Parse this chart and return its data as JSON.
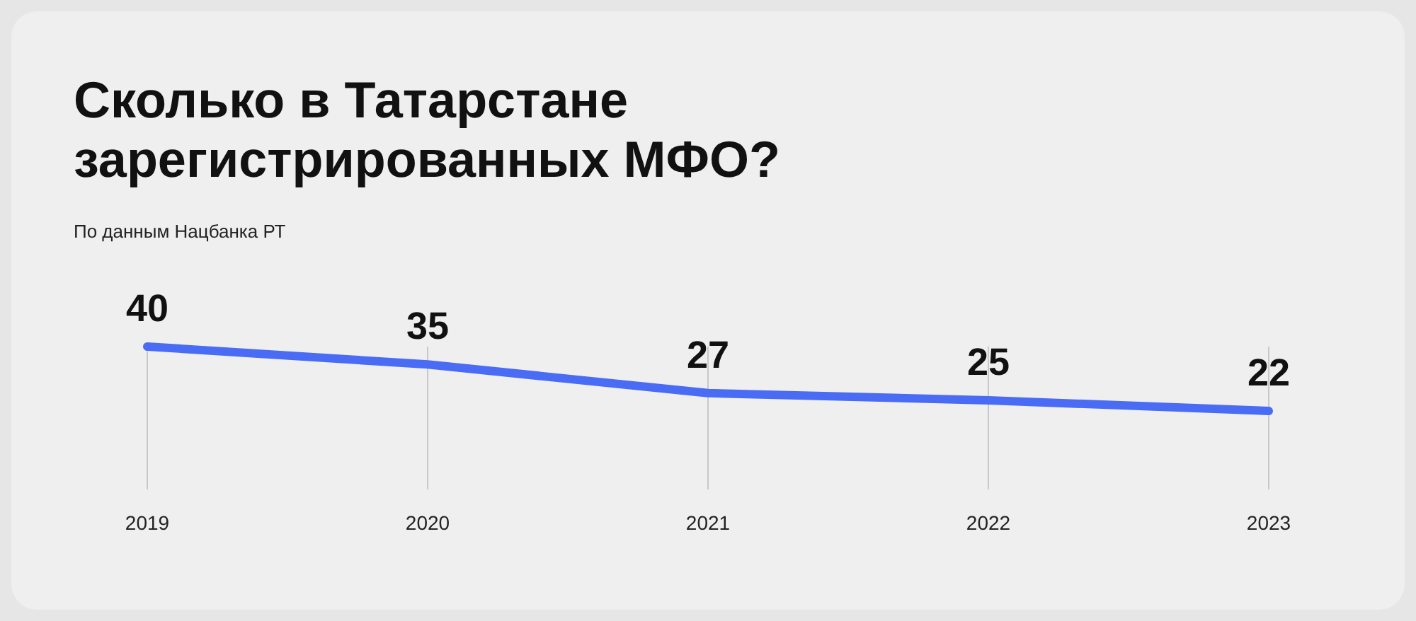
{
  "chart_data": {
    "type": "line",
    "title": "Сколько в Татарстане\nзарегистрированных МФО?",
    "subtitle": "По данным Нацбанка РТ",
    "categories": [
      "2019",
      "2020",
      "2021",
      "2022",
      "2023"
    ],
    "series": [
      {
        "color": "#4a6cf5",
        "values": [
          40,
          35,
          27,
          25,
          22
        ]
      }
    ],
    "data_labels": true,
    "grid": "x",
    "legend": false,
    "tick_labels": "x",
    "marker": "none",
    "line_style": "solid"
  }
}
